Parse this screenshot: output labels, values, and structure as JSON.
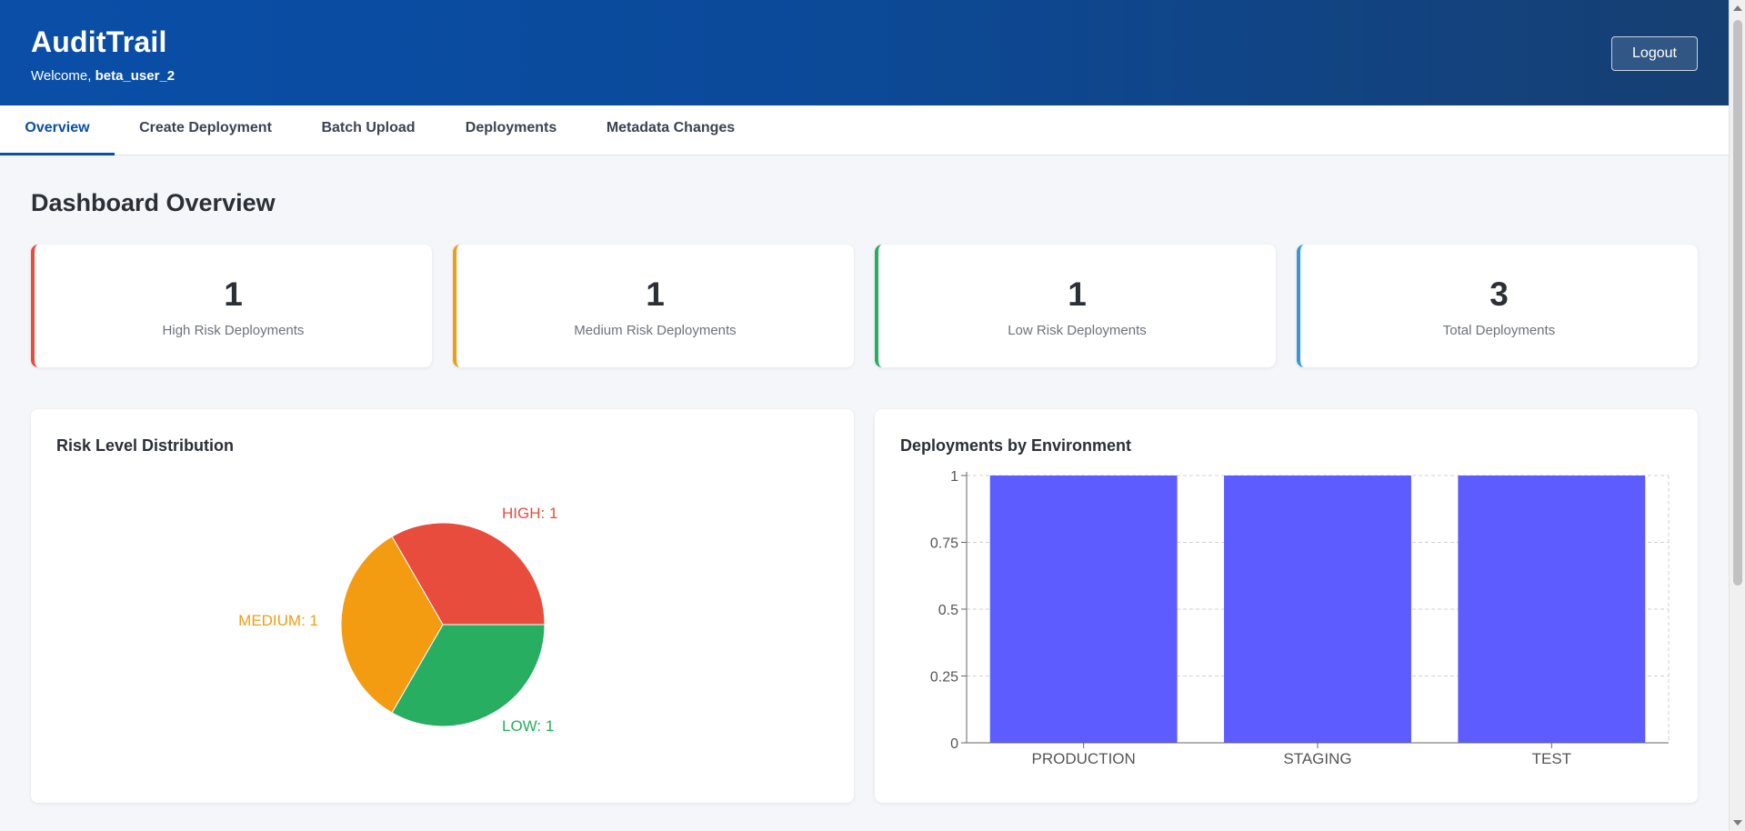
{
  "header": {
    "title": "AuditTrail",
    "welcome_prefix": "Welcome, ",
    "username": "beta_user_2",
    "logout_label": "Logout"
  },
  "tabs": [
    {
      "label": "Overview",
      "active": true
    },
    {
      "label": "Create Deployment",
      "active": false
    },
    {
      "label": "Batch Upload",
      "active": false
    },
    {
      "label": "Deployments",
      "active": false
    },
    {
      "label": "Metadata Changes",
      "active": false
    }
  ],
  "page_title": "Dashboard Overview",
  "stats": [
    {
      "value": "1",
      "label": "High Risk Deployments",
      "color": "#e74c3c"
    },
    {
      "value": "1",
      "label": "Medium Risk Deployments",
      "color": "#f39c12"
    },
    {
      "value": "1",
      "label": "Low Risk Deployments",
      "color": "#27ae60"
    },
    {
      "value": "3",
      "label": "Total Deployments",
      "color": "#3498db"
    }
  ],
  "pie_panel": {
    "title": "Risk Level Distribution"
  },
  "bar_panel": {
    "title": "Deployments by Environment"
  },
  "chart_data": [
    {
      "type": "pie",
      "title": "Risk Level Distribution",
      "slices": [
        {
          "name": "HIGH",
          "value": 1,
          "label": "HIGH: 1",
          "color": "#e74c3c"
        },
        {
          "name": "LOW",
          "value": 1,
          "label": "LOW: 1",
          "color": "#27ae60"
        },
        {
          "name": "MEDIUM",
          "value": 1,
          "label": "MEDIUM: 1",
          "color": "#f39c12"
        }
      ]
    },
    {
      "type": "bar",
      "title": "Deployments by Environment",
      "categories": [
        "PRODUCTION",
        "STAGING",
        "TEST"
      ],
      "values": [
        1,
        1,
        1
      ],
      "ylim": [
        0,
        1
      ],
      "yticks": [
        "0",
        "0.25",
        "0.5",
        "0.75",
        "1"
      ],
      "grid": true,
      "bar_color": "#5c5cff"
    }
  ]
}
